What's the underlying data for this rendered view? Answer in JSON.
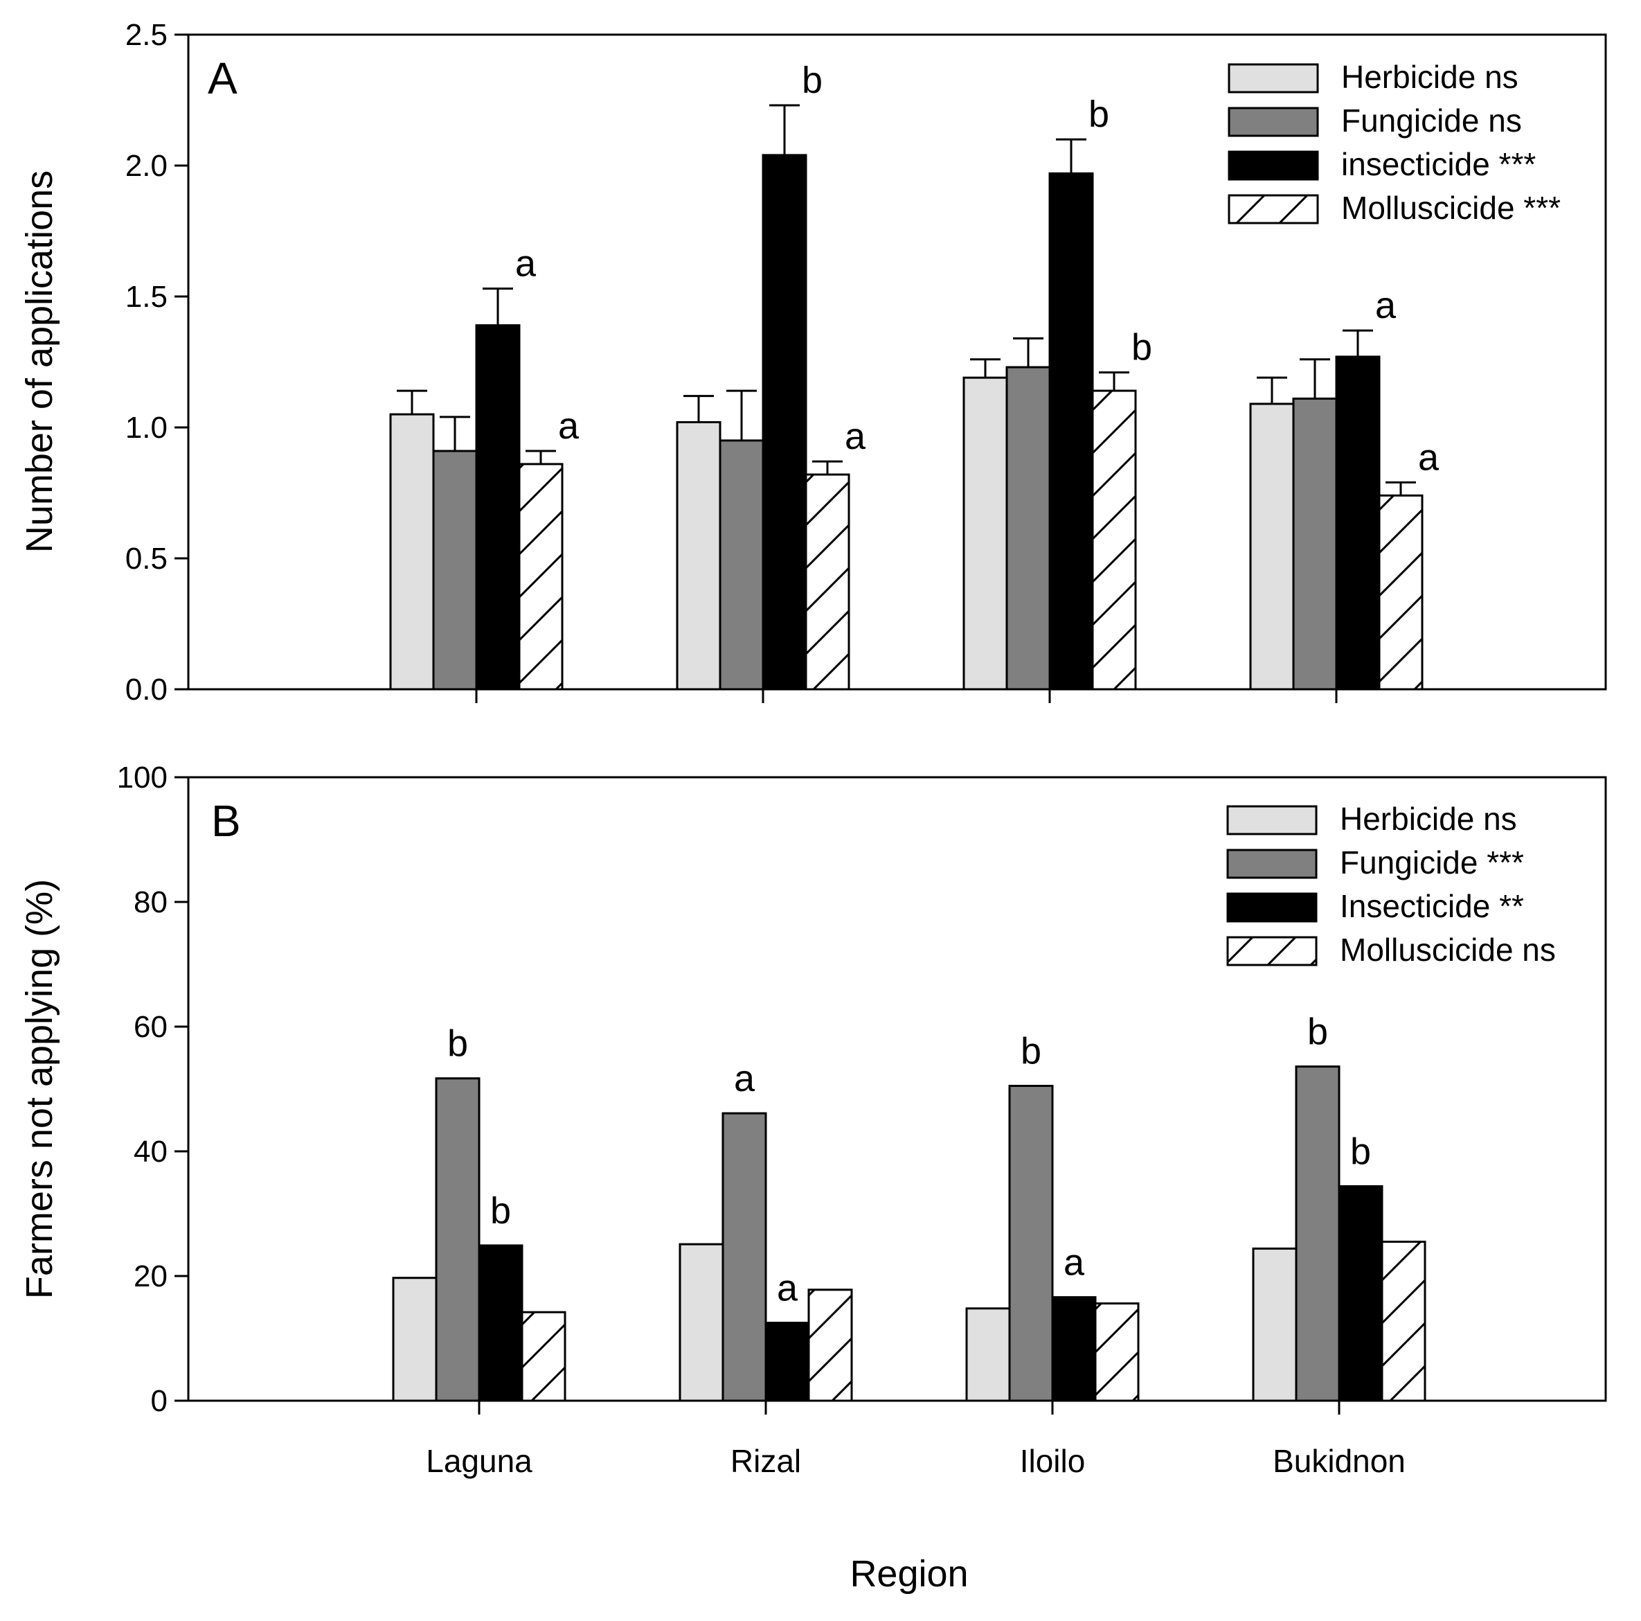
{
  "figure": {
    "xlabel": "Region"
  },
  "chart_data": [
    {
      "type": "bar",
      "panel_label": "A",
      "title": "",
      "xlabel": "",
      "ylabel": "Number of applications",
      "ylim": [
        0,
        2.5
      ],
      "yticks": [
        0,
        0.5,
        1,
        1.5,
        2,
        2.5
      ],
      "ytick_labels": [
        "0.0",
        "0.5",
        "1.0",
        "1.5",
        "2.0",
        "2.5"
      ],
      "ytick_decimals": 1,
      "categories": [
        "Laguna",
        "Rizal",
        "Iloilo",
        "Bukidnon"
      ],
      "show_category_labels": false,
      "legend_position": "top-right",
      "series": [
        {
          "name": "Herbicide ns",
          "style": "light",
          "fill": "#e0e0e0",
          "values": [
            1.05,
            1.02,
            1.19,
            1.09
          ],
          "errors": [
            0.09,
            0.1,
            0.07,
            0.1
          ],
          "letters": [
            "",
            "",
            "",
            ""
          ]
        },
        {
          "name": "Fungicide ns",
          "style": "gray",
          "fill": "#808080",
          "values": [
            0.91,
            0.95,
            1.23,
            1.11
          ],
          "errors": [
            0.13,
            0.19,
            0.11,
            0.15
          ],
          "letters": [
            "",
            "",
            "",
            ""
          ]
        },
        {
          "name": "insecticide ***",
          "style": "black",
          "fill": "#000000",
          "values": [
            1.39,
            2.04,
            1.97,
            1.27
          ],
          "errors": [
            0.14,
            0.19,
            0.13,
            0.1
          ],
          "letters": [
            "a",
            "b",
            "b",
            "a"
          ]
        },
        {
          "name": "Molluscicide ***",
          "style": "hatch",
          "fill": "#ffffff",
          "values": [
            0.86,
            0.82,
            1.14,
            0.74
          ],
          "errors": [
            0.05,
            0.05,
            0.07,
            0.05
          ],
          "letters": [
            "a",
            "a",
            "b",
            "a"
          ]
        }
      ]
    },
    {
      "type": "bar",
      "panel_label": "B",
      "title": "",
      "xlabel": "Region",
      "ylabel": "Farmers not applying (%)",
      "ylim": [
        0,
        100
      ],
      "yticks": [
        0,
        20,
        40,
        60,
        80,
        100
      ],
      "ytick_labels": [
        "0",
        "20",
        "40",
        "60",
        "80",
        "100"
      ],
      "ytick_decimals": 0,
      "categories": [
        "Laguna",
        "Rizal",
        "Iloilo",
        "Bukidnon"
      ],
      "show_category_labels": true,
      "legend_position": "top-right",
      "series": [
        {
          "name": "Herbicide ns",
          "style": "light",
          "fill": "#e0e0e0",
          "values": [
            19.7,
            25.1,
            14.8,
            24.4
          ],
          "errors": null,
          "letters": [
            "",
            "",
            "",
            ""
          ]
        },
        {
          "name": "Fungicide ***",
          "style": "gray",
          "fill": "#808080",
          "values": [
            51.7,
            46.1,
            50.5,
            53.6
          ],
          "errors": null,
          "letters": [
            "b",
            "a",
            "b",
            "b"
          ]
        },
        {
          "name": "Insecticide **",
          "style": "black",
          "fill": "#000000",
          "values": [
            24.9,
            12.5,
            16.6,
            34.4
          ],
          "errors": null,
          "letters": [
            "b",
            "a",
            "a",
            "b"
          ]
        },
        {
          "name": "Molluscicide ns",
          "style": "hatch",
          "fill": "#ffffff",
          "values": [
            14.2,
            17.8,
            15.6,
            25.5
          ],
          "errors": null,
          "letters": [
            "",
            "",
            "",
            ""
          ]
        }
      ]
    }
  ]
}
